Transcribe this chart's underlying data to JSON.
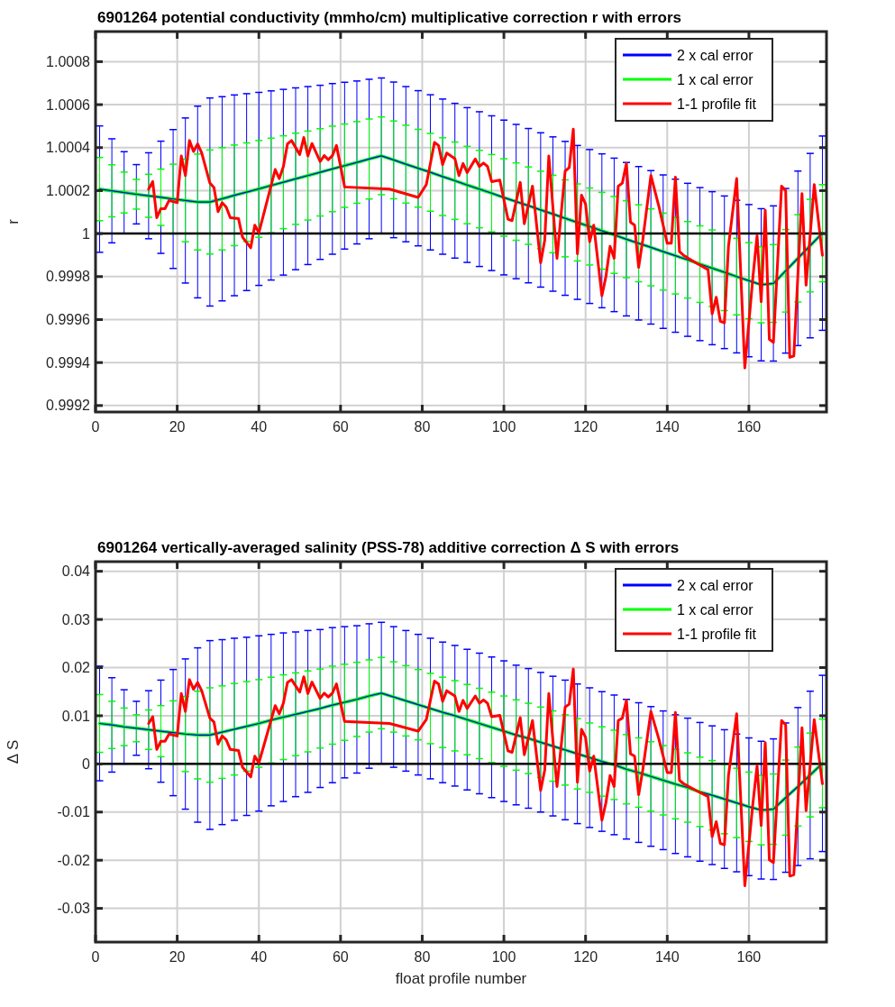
{
  "chart_data": [
    {
      "type": "line",
      "title": "6901264 potential conductivity (mmho/cm) multiplicative correction r with errors",
      "ylabel": "r",
      "xlim": [
        0,
        179
      ],
      "xticks": [
        0,
        20,
        40,
        60,
        80,
        100,
        120,
        140,
        160
      ],
      "ylim": [
        0.99917,
        1.00094
      ],
      "yticks": [
        0.9992,
        0.9994,
        0.9996,
        0.9998,
        1,
        1.0002,
        1.0004,
        1.0006,
        1.0008
      ],
      "grid": true,
      "legend": "top right",
      "ref_lines": [
        {
          "axis": "y",
          "value": 1,
          "color": "#000000"
        }
      ],
      "series": [
        {
          "name": "2 x cal error",
          "color": "#0000ff",
          "x": [
            1,
            4,
            7,
            10,
            13,
            16,
            19,
            22,
            25,
            28,
            31,
            34,
            37,
            40,
            43,
            46,
            49,
            52,
            55,
            58,
            61,
            64,
            67,
            70,
            73,
            76,
            79,
            82,
            85,
            88,
            91,
            94,
            97,
            100,
            103,
            106,
            109,
            112,
            115,
            118,
            121,
            124,
            127,
            130,
            133,
            136,
            139,
            142,
            145,
            148,
            151,
            154,
            157,
            160,
            163,
            166,
            169,
            172,
            175,
            178
          ],
          "values": [
            1.000207,
            1.000199,
            1.000191,
            1.000183,
            1.000176,
            1.000169,
            1.000161,
            1.000154,
            1.000147,
            1.000147,
            1.000162,
            1.000178,
            1.000193,
            1.000208,
            1.000224,
            1.000239,
            1.000255,
            1.00027,
            1.000285,
            1.000301,
            1.000316,
            1.000331,
            1.000347,
            1.000362,
            1.000343,
            1.000323,
            1.000304,
            1.000285,
            1.000265,
            1.000246,
            1.000226,
            1.000207,
            1.000188,
            1.000168,
            1.000149,
            1.00013,
            1.00011,
            1.000091,
            1.000071,
            1.000052,
            1.000033,
            1.000013,
            0.999994,
            0.999974,
            0.999955,
            0.999936,
            0.999916,
            0.999897,
            0.999878,
            0.999858,
            0.999839,
            0.99982,
            0.9998,
            0.999781,
            0.999762,
            0.999768,
            0.999827,
            0.999885,
            0.999944,
            1.000002
          ],
          "errors": [
            0.000294,
            0.000242,
            0.00019,
            0.000138,
            0.0002,
            0.000261,
            0.000323,
            0.000384,
            0.000446,
            0.000484,
            0.000475,
            0.000467,
            0.000458,
            0.000449,
            0.00044,
            0.000432,
            0.000423,
            0.000414,
            0.000405,
            0.000397,
            0.000388,
            0.000379,
            0.000371,
            0.000362,
            0.000362,
            0.000361,
            0.000361,
            0.000361,
            0.000361,
            0.00036,
            0.00036,
            0.00036,
            0.00036,
            0.00036,
            0.000359,
            0.000359,
            0.000359,
            0.000359,
            0.000358,
            0.000358,
            0.000358,
            0.000358,
            0.000357,
            0.000357,
            0.000357,
            0.000357,
            0.000357,
            0.000356,
            0.000356,
            0.000356,
            0.000356,
            0.000355,
            0.000355,
            0.000354,
            0.000354,
            0.000361,
            0.000383,
            0.000406,
            0.000429,
            0.000452
          ]
        },
        {
          "name": "1 x cal error",
          "color": "#00ff00",
          "x": [
            1,
            4,
            7,
            10,
            13,
            16,
            19,
            22,
            25,
            28,
            31,
            34,
            37,
            40,
            43,
            46,
            49,
            52,
            55,
            58,
            61,
            64,
            67,
            70,
            73,
            76,
            79,
            82,
            85,
            88,
            91,
            94,
            97,
            100,
            103,
            106,
            109,
            112,
            115,
            118,
            121,
            124,
            127,
            130,
            133,
            136,
            139,
            142,
            145,
            148,
            151,
            154,
            157,
            160,
            163,
            166,
            169,
            172,
            175,
            178
          ],
          "values": [
            1.000207,
            1.000199,
            1.000191,
            1.000183,
            1.000176,
            1.000169,
            1.000161,
            1.000154,
            1.000147,
            1.000147,
            1.000162,
            1.000178,
            1.000193,
            1.000208,
            1.000224,
            1.000239,
            1.000255,
            1.00027,
            1.000285,
            1.000301,
            1.000316,
            1.000331,
            1.000347,
            1.000362,
            1.000343,
            1.000323,
            1.000304,
            1.000285,
            1.000265,
            1.000246,
            1.000226,
            1.000207,
            1.000188,
            1.000168,
            1.000149,
            1.00013,
            1.00011,
            1.000091,
            1.000071,
            1.000052,
            1.000033,
            1.000013,
            0.999994,
            0.999974,
            0.999955,
            0.999936,
            0.999916,
            0.999897,
            0.999878,
            0.999858,
            0.999839,
            0.99982,
            0.9998,
            0.999781,
            0.999762,
            0.999768,
            0.999827,
            0.999885,
            0.999944,
            1.000002
          ],
          "errors": [
            0.000147,
            0.000121,
            9.5e-05,
            6.9e-05,
            0.0001,
            0.000131,
            0.000162,
            0.000192,
            0.000223,
            0.000242,
            0.000238,
            0.000234,
            0.000229,
            0.000225,
            0.00022,
            0.000216,
            0.000212,
            0.000207,
            0.000203,
            0.000199,
            0.000194,
            0.00019,
            0.000186,
            0.000181,
            0.000181,
            0.000181,
            0.000181,
            0.000181,
            0.000181,
            0.00018,
            0.00018,
            0.00018,
            0.00018,
            0.00018,
            0.00018,
            0.00018,
            0.00018,
            0.00018,
            0.000179,
            0.000179,
            0.000179,
            0.000179,
            0.000179,
            0.000179,
            0.000179,
            0.000179,
            0.000179,
            0.000178,
            0.000178,
            0.000178,
            0.000178,
            0.000178,
            0.000178,
            0.000177,
            0.000177,
            0.000181,
            0.000192,
            0.000203,
            0.000215,
            0.000226
          ]
        },
        {
          "name": "1-1 profile fit",
          "color": "#ff0000",
          "x": [
            13,
            14,
            15,
            16,
            17,
            18,
            20,
            21,
            22,
            23,
            24,
            25,
            26,
            28,
            29,
            30,
            31,
            32,
            33,
            35,
            36,
            38,
            39,
            40,
            44,
            45,
            46,
            47,
            48,
            50,
            51,
            52,
            53,
            55,
            56,
            57,
            58,
            59,
            61,
            72,
            79,
            81,
            83,
            84,
            85,
            86,
            88,
            89,
            90,
            91,
            93,
            94,
            95,
            96,
            97,
            99,
            101,
            102,
            104,
            105,
            107,
            109,
            110,
            111,
            113,
            115,
            116,
            117,
            118,
            119,
            120,
            121,
            122,
            124,
            125,
            126,
            127,
            128,
            129,
            130,
            131,
            132,
            133,
            134,
            136,
            138,
            140,
            141,
            142,
            143,
            144,
            147,
            150,
            151,
            152,
            153,
            154,
            155,
            157,
            159,
            161,
            162,
            163,
            164,
            165,
            166,
            168,
            169,
            170,
            171,
            173,
            174,
            176,
            178
          ],
          "values": [
            1.000207,
            1.000242,
            1.000074,
            1.000116,
            1.000116,
            1.000154,
            1.000144,
            1.000361,
            1.00027,
            1.000433,
            1.000382,
            1.000417,
            1.000375,
            1.000235,
            1.000214,
            1.000102,
            1.000144,
            1.000123,
            1.000074,
            1.00007,
            0.999983,
            0.999934,
            1.000039,
            1.000004,
            1.000298,
            1.000256,
            1.000312,
            1.000417,
            1.000433,
            1.000368,
            1.000447,
            1.000361,
            1.000419,
            1.000335,
            1.000363,
            1.000344,
            1.000363,
            1.00041,
            1.000217,
            1.000207,
            1.000168,
            1.000228,
            1.000424,
            1.00041,
            1.000321,
            1.000375,
            1.000349,
            1.00027,
            1.000326,
            1.000284,
            1.000347,
            1.000312,
            1.000328,
            1.000312,
            1.000242,
            1.000249,
            1.000067,
            1.00006,
            1.000238,
            1.000046,
            1.000221,
            0.999864,
            0.999969,
            1.000361,
            0.999885,
            1.000291,
            1.000307,
            1.000486,
            0.999906,
            1.000179,
            1.000137,
            0.999962,
            1.000039,
            0.999711,
            0.999802,
            0.999941,
            0.999885,
            1.000221,
            1.000235,
            1.000326,
            1.000053,
            1.000039,
            0.999843,
            0.999969,
            1.00027,
            1.000123,
            0.999955,
            0.999955,
            1.000263,
            0.999916,
            0.999899,
            0.999864,
            0.999832,
            0.999627,
            0.999704,
            0.999592,
            0.999585,
            0.999941,
            1.000256,
            0.999375,
            0.999802,
            0.99999,
            0.999683,
            1.000109,
            0.999508,
            0.999494,
            1.000221,
            1.0002,
            0.999424,
            0.999431,
            1.000186,
            0.99976,
            1.000228,
            0.999899
          ]
        }
      ]
    },
    {
      "type": "line",
      "title": "6901264 vertically-averaged salinity (PSS-78) additive correction Δ S with errors",
      "xlabel": "float profile number",
      "ylabel": "Δ S",
      "xlim": [
        0,
        179
      ],
      "xticks": [
        0,
        20,
        40,
        60,
        80,
        100,
        120,
        140,
        160
      ],
      "ylim": [
        -0.037,
        0.042
      ],
      "yticks": [
        -0.03,
        -0.02,
        -0.01,
        0,
        0.01,
        0.02,
        0.03,
        0.04
      ],
      "grid": true,
      "legend": "top right",
      "ref_lines": [
        {
          "axis": "y",
          "value": 0,
          "color": "#000000"
        }
      ],
      "series": [
        {
          "name": "2 x cal error",
          "color": "#0000ff",
          "x": [
            1,
            4,
            7,
            10,
            13,
            16,
            19,
            22,
            25,
            28,
            31,
            34,
            37,
            40,
            43,
            46,
            49,
            52,
            55,
            58,
            61,
            64,
            67,
            70,
            73,
            76,
            79,
            82,
            85,
            88,
            91,
            94,
            97,
            100,
            103,
            106,
            109,
            112,
            115,
            118,
            121,
            124,
            127,
            130,
            133,
            136,
            139,
            142,
            145,
            148,
            151,
            154,
            157,
            160,
            163,
            166,
            169,
            172,
            175,
            178
          ],
          "values": [
            0.0084,
            0.0081,
            0.0077,
            0.0074,
            0.0071,
            0.0068,
            0.0065,
            0.0062,
            0.006,
            0.006,
            0.0066,
            0.0072,
            0.0078,
            0.0084,
            0.0091,
            0.0097,
            0.0103,
            0.0109,
            0.0115,
            0.0122,
            0.0128,
            0.0134,
            0.0141,
            0.0147,
            0.0139,
            0.0131,
            0.0123,
            0.0115,
            0.0107,
            0.01,
            0.0092,
            0.0084,
            0.0076,
            0.0068,
            0.006,
            0.0053,
            0.0045,
            0.0037,
            0.0029,
            0.0021,
            0.0013,
            0.0005,
            -0.0002,
            -0.0011,
            -0.0018,
            -0.0026,
            -0.0034,
            -0.0042,
            -0.0049,
            -0.0058,
            -0.0065,
            -0.0073,
            -0.0081,
            -0.0089,
            -0.0096,
            -0.0094,
            -0.007,
            -0.0047,
            -0.0023,
            0.0001
          ],
          "errors": [
            0.0119,
            0.0098,
            0.0077,
            0.0056,
            0.0081,
            0.0106,
            0.0131,
            0.0156,
            0.0181,
            0.0196,
            0.0192,
            0.0189,
            0.0185,
            0.0182,
            0.0178,
            0.0175,
            0.0171,
            0.0168,
            0.0164,
            0.0161,
            0.0157,
            0.0153,
            0.015,
            0.0147,
            0.0146,
            0.0146,
            0.0146,
            0.0146,
            0.0146,
            0.0146,
            0.0146,
            0.0146,
            0.0146,
            0.0146,
            0.0145,
            0.0145,
            0.0145,
            0.0145,
            0.0145,
            0.0145,
            0.0145,
            0.0145,
            0.0145,
            0.0145,
            0.0145,
            0.0145,
            0.0144,
            0.0144,
            0.0144,
            0.0144,
            0.0144,
            0.0144,
            0.0143,
            0.0143,
            0.0143,
            0.0146,
            0.0155,
            0.0164,
            0.0174,
            0.0183
          ]
        },
        {
          "name": "1 x cal error",
          "color": "#00ff00",
          "x": [
            1,
            4,
            7,
            10,
            13,
            16,
            19,
            22,
            25,
            28,
            31,
            34,
            37,
            40,
            43,
            46,
            49,
            52,
            55,
            58,
            61,
            64,
            67,
            70,
            73,
            76,
            79,
            82,
            85,
            88,
            91,
            94,
            97,
            100,
            103,
            106,
            109,
            112,
            115,
            118,
            121,
            124,
            127,
            130,
            133,
            136,
            139,
            142,
            145,
            148,
            151,
            154,
            157,
            160,
            163,
            166,
            169,
            172,
            175,
            178
          ],
          "values": [
            0.0084,
            0.0081,
            0.0077,
            0.0074,
            0.0071,
            0.0068,
            0.0065,
            0.0062,
            0.006,
            0.006,
            0.0066,
            0.0072,
            0.0078,
            0.0084,
            0.0091,
            0.0097,
            0.0103,
            0.0109,
            0.0115,
            0.0122,
            0.0128,
            0.0134,
            0.0141,
            0.0147,
            0.0139,
            0.0131,
            0.0123,
            0.0115,
            0.0107,
            0.01,
            0.0092,
            0.0084,
            0.0076,
            0.0068,
            0.006,
            0.0053,
            0.0045,
            0.0037,
            0.0029,
            0.0021,
            0.0013,
            0.0005,
            -0.0002,
            -0.0011,
            -0.0018,
            -0.0026,
            -0.0034,
            -0.0042,
            -0.0049,
            -0.0058,
            -0.0065,
            -0.0073,
            -0.0081,
            -0.0089,
            -0.0096,
            -0.0094,
            -0.007,
            -0.0047,
            -0.0023,
            0.0001
          ],
          "errors": [
            0.006,
            0.0049,
            0.0039,
            0.0028,
            0.0041,
            0.0053,
            0.0066,
            0.0078,
            0.0091,
            0.0098,
            0.0096,
            0.0095,
            0.0093,
            0.0091,
            0.0089,
            0.0088,
            0.0086,
            0.0084,
            0.0082,
            0.0081,
            0.0079,
            0.0077,
            0.0075,
            0.0074,
            0.0073,
            0.0073,
            0.0073,
            0.0073,
            0.0073,
            0.0073,
            0.0073,
            0.0073,
            0.0073,
            0.0073,
            0.0073,
            0.0073,
            0.0073,
            0.0073,
            0.0073,
            0.0073,
            0.0072,
            0.0072,
            0.0072,
            0.0072,
            0.0072,
            0.0072,
            0.0072,
            0.0072,
            0.0072,
            0.0072,
            0.0072,
            0.0072,
            0.0072,
            0.0072,
            0.0072,
            0.0073,
            0.0078,
            0.0082,
            0.0087,
            0.0092
          ]
        },
        {
          "name": "1-1 profile fit",
          "color": "#ff0000",
          "x": [
            13,
            14,
            15,
            16,
            17,
            18,
            20,
            21,
            22,
            23,
            24,
            25,
            26,
            28,
            29,
            30,
            31,
            32,
            33,
            35,
            36,
            38,
            39,
            40,
            44,
            45,
            46,
            47,
            48,
            50,
            51,
            52,
            53,
            55,
            56,
            57,
            58,
            59,
            61,
            72,
            79,
            81,
            83,
            84,
            85,
            86,
            88,
            89,
            90,
            91,
            93,
            94,
            95,
            96,
            97,
            99,
            101,
            102,
            104,
            105,
            107,
            109,
            110,
            111,
            113,
            115,
            116,
            117,
            118,
            119,
            120,
            121,
            122,
            124,
            125,
            126,
            127,
            128,
            129,
            130,
            131,
            132,
            133,
            134,
            136,
            138,
            140,
            141,
            142,
            143,
            144,
            147,
            150,
            151,
            152,
            153,
            154,
            155,
            157,
            159,
            161,
            162,
            163,
            164,
            165,
            166,
            168,
            169,
            170,
            171,
            173,
            174,
            176,
            178
          ],
          "values": [
            0.0084,
            0.0098,
            0.003,
            0.0047,
            0.0047,
            0.0062,
            0.0058,
            0.0146,
            0.0109,
            0.0175,
            0.0155,
            0.0169,
            0.0152,
            0.0095,
            0.0087,
            0.0041,
            0.0058,
            0.005,
            0.003,
            0.0028,
            -0.0007,
            -0.0027,
            0.0016,
            0.0002,
            0.0121,
            0.0104,
            0.0126,
            0.0169,
            0.0175,
            0.0149,
            0.0181,
            0.0146,
            0.017,
            0.0136,
            0.0147,
            0.0139,
            0.0147,
            0.0166,
            0.0088,
            0.0084,
            0.0068,
            0.0092,
            0.0172,
            0.0166,
            0.013,
            0.0152,
            0.0141,
            0.0109,
            0.0132,
            0.0115,
            0.0141,
            0.0126,
            0.0133,
            0.0126,
            0.0098,
            0.0101,
            0.0027,
            0.0024,
            0.0096,
            0.0019,
            0.009,
            -0.0055,
            -0.0013,
            0.0146,
            -0.0047,
            0.0118,
            0.0124,
            0.0197,
            -0.0038,
            0.0072,
            0.0055,
            -0.0015,
            0.0016,
            -0.0117,
            -0.008,
            -0.0024,
            -0.0047,
            0.009,
            0.0095,
            0.0132,
            0.0021,
            0.0016,
            -0.0064,
            -0.0013,
            0.0109,
            0.005,
            -0.0018,
            -0.0018,
            0.0107,
            -0.0034,
            -0.0041,
            -0.0055,
            -0.0068,
            -0.0151,
            -0.012,
            -0.0165,
            -0.0168,
            -0.0024,
            0.0104,
            -0.0253,
            -0.008,
            -0.0004,
            -0.0128,
            0.0044,
            -0.0199,
            -0.0205,
            0.009,
            0.0081,
            -0.0233,
            -0.023,
            0.0075,
            -0.0097,
            0.0092,
            -0.0041
          ]
        }
      ]
    }
  ]
}
